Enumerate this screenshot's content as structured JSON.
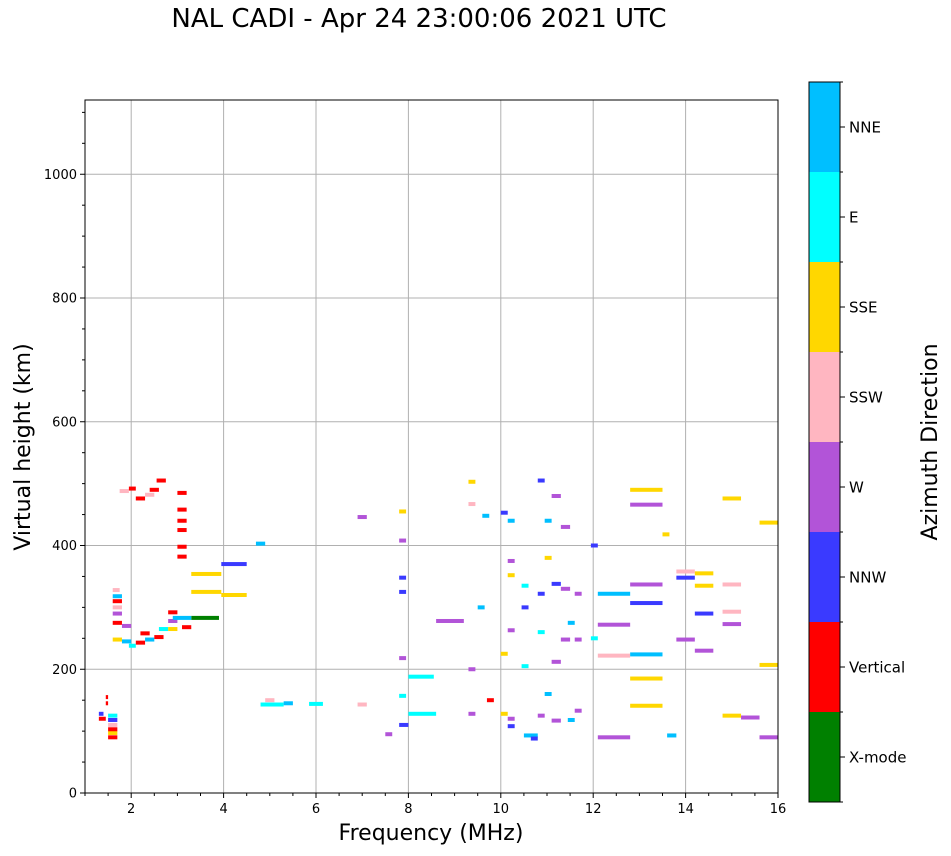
{
  "chart_data": {
    "type": "scatter",
    "title": "NAL CADI - Apr 24 23:00:06 2021 UTC",
    "xlabel": "Frequency (MHz)",
    "ylabel": "Virtual height (km)",
    "xlim": [
      1,
      16
    ],
    "ylim": [
      0,
      1120
    ],
    "x_ticks": [
      2,
      4,
      6,
      8,
      10,
      12,
      14,
      16
    ],
    "y_ticks": [
      0,
      200,
      400,
      600,
      800,
      1000
    ],
    "grid": true,
    "colorbar": {
      "label": "Azimuth Direction",
      "categories": [
        {
          "name": "X-mode",
          "color": "#008000"
        },
        {
          "name": "Vertical",
          "color": "#ff0000"
        },
        {
          "name": "NNW",
          "color": "#3a3aff"
        },
        {
          "name": "W",
          "color": "#b254d8"
        },
        {
          "name": "SSW",
          "color": "#ffb6c1"
        },
        {
          "name": "SSE",
          "color": "#ffd700"
        },
        {
          "name": "E",
          "color": "#00ffff"
        },
        {
          "name": "NNE",
          "color": "#00bfff"
        }
      ]
    },
    "echoes": [
      {
        "f0": 3.3,
        "f1": 3.9,
        "h": 283,
        "dir": "X-mode"
      },
      {
        "f0": 1.5,
        "f1": 1.7,
        "h": 90,
        "dir": "Vertical"
      },
      {
        "f0": 1.5,
        "f1": 1.7,
        "h": 97,
        "dir": "SSE"
      },
      {
        "f0": 1.5,
        "f1": 1.7,
        "h": 103,
        "dir": "Vertical"
      },
      {
        "f0": 1.5,
        "f1": 1.7,
        "h": 110,
        "dir": "SSW"
      },
      {
        "f0": 1.5,
        "f1": 1.7,
        "h": 118,
        "dir": "NNW"
      },
      {
        "f0": 1.5,
        "f1": 1.7,
        "h": 125,
        "dir": "E"
      },
      {
        "f0": 1.45,
        "f1": 1.5,
        "h": 145,
        "dir": "Vertical"
      },
      {
        "f0": 1.3,
        "f1": 1.45,
        "h": 120,
        "dir": "Vertical"
      },
      {
        "f0": 1.3,
        "f1": 1.4,
        "h": 128,
        "dir": "NNW"
      },
      {
        "f0": 1.45,
        "f1": 1.5,
        "h": 155,
        "dir": "Vertical"
      },
      {
        "f0": 1.6,
        "f1": 1.8,
        "h": 248,
        "dir": "SSE"
      },
      {
        "f0": 1.8,
        "f1": 2.0,
        "h": 245,
        "dir": "NNE"
      },
      {
        "f0": 1.95,
        "f1": 2.1,
        "h": 238,
        "dir": "E"
      },
      {
        "f0": 2.1,
        "f1": 2.3,
        "h": 243,
        "dir": "Vertical"
      },
      {
        "f0": 2.2,
        "f1": 2.4,
        "h": 258,
        "dir": "Vertical"
      },
      {
        "f0": 2.3,
        "f1": 2.5,
        "h": 248,
        "dir": "NNE"
      },
      {
        "f0": 2.5,
        "f1": 2.7,
        "h": 252,
        "dir": "Vertical"
      },
      {
        "f0": 2.6,
        "f1": 2.8,
        "h": 265,
        "dir": "E"
      },
      {
        "f0": 1.6,
        "f1": 1.8,
        "h": 275,
        "dir": "Vertical"
      },
      {
        "f0": 1.6,
        "f1": 1.8,
        "h": 290,
        "dir": "W"
      },
      {
        "f0": 1.6,
        "f1": 1.8,
        "h": 300,
        "dir": "SSW"
      },
      {
        "f0": 1.6,
        "f1": 1.8,
        "h": 310,
        "dir": "Vertical"
      },
      {
        "f0": 1.6,
        "f1": 1.8,
        "h": 318,
        "dir": "NNE"
      },
      {
        "f0": 1.6,
        "f1": 1.75,
        "h": 328,
        "dir": "SSW"
      },
      {
        "f0": 1.8,
        "f1": 2.0,
        "h": 270,
        "dir": "W"
      },
      {
        "f0": 2.8,
        "f1": 3.0,
        "h": 292,
        "dir": "Vertical"
      },
      {
        "f0": 2.8,
        "f1": 3.0,
        "h": 278,
        "dir": "W"
      },
      {
        "f0": 2.9,
        "f1": 3.3,
        "h": 283,
        "dir": "NNE"
      },
      {
        "f0": 2.8,
        "f1": 3.0,
        "h": 265,
        "dir": "SSE"
      },
      {
        "f0": 3.1,
        "f1": 3.3,
        "h": 268,
        "dir": "Vertical"
      },
      {
        "f0": 3.3,
        "f1": 3.95,
        "h": 325,
        "dir": "SSE"
      },
      {
        "f0": 3.3,
        "f1": 3.95,
        "h": 354,
        "dir": "SSE"
      },
      {
        "f0": 3.95,
        "f1": 4.5,
        "h": 320,
        "dir": "SSE"
      },
      {
        "f0": 3.95,
        "f1": 4.5,
        "h": 370,
        "dir": "NNW"
      },
      {
        "f0": 3.0,
        "f1": 3.2,
        "h": 382,
        "dir": "Vertical"
      },
      {
        "f0": 3.0,
        "f1": 3.2,
        "h": 398,
        "dir": "Vertical"
      },
      {
        "f0": 3.0,
        "f1": 3.2,
        "h": 425,
        "dir": "Vertical"
      },
      {
        "f0": 3.0,
        "f1": 3.2,
        "h": 440,
        "dir": "Vertical"
      },
      {
        "f0": 3.0,
        "f1": 3.2,
        "h": 458,
        "dir": "Vertical"
      },
      {
        "f0": 3.0,
        "f1": 3.2,
        "h": 485,
        "dir": "Vertical"
      },
      {
        "f0": 1.75,
        "f1": 1.95,
        "h": 488,
        "dir": "SSW"
      },
      {
        "f0": 1.95,
        "f1": 2.1,
        "h": 492,
        "dir": "Vertical"
      },
      {
        "f0": 2.1,
        "f1": 2.3,
        "h": 476,
        "dir": "Vertical"
      },
      {
        "f0": 2.3,
        "f1": 2.5,
        "h": 482,
        "dir": "SSW"
      },
      {
        "f0": 2.4,
        "f1": 2.6,
        "h": 490,
        "dir": "Vertical"
      },
      {
        "f0": 2.55,
        "f1": 2.75,
        "h": 505,
        "dir": "Vertical"
      },
      {
        "f0": 4.7,
        "f1": 4.9,
        "h": 403,
        "dir": "NNE"
      },
      {
        "f0": 4.8,
        "f1": 5.3,
        "h": 143,
        "dir": "E"
      },
      {
        "f0": 5.3,
        "f1": 5.5,
        "h": 145,
        "dir": "NNE"
      },
      {
        "f0": 4.9,
        "f1": 5.1,
        "h": 150,
        "dir": "SSW"
      },
      {
        "f0": 5.85,
        "f1": 6.15,
        "h": 144,
        "dir": "E"
      },
      {
        "f0": 6.9,
        "f1": 7.1,
        "h": 446,
        "dir": "W"
      },
      {
        "f0": 6.9,
        "f1": 7.1,
        "h": 143,
        "dir": "SSW"
      },
      {
        "f0": 7.5,
        "f1": 7.65,
        "h": 95,
        "dir": "W"
      },
      {
        "f0": 7.8,
        "f1": 8.0,
        "h": 110,
        "dir": "NNW"
      },
      {
        "f0": 8.0,
        "f1": 8.6,
        "h": 128,
        "dir": "E"
      },
      {
        "f0": 8.0,
        "f1": 8.55,
        "h": 188,
        "dir": "E"
      },
      {
        "f0": 8.6,
        "f1": 9.2,
        "h": 278,
        "dir": "W"
      },
      {
        "f0": 7.8,
        "f1": 7.95,
        "h": 348,
        "dir": "NNW"
      },
      {
        "f0": 7.8,
        "f1": 7.95,
        "h": 408,
        "dir": "W"
      },
      {
        "f0": 7.8,
        "f1": 7.95,
        "h": 455,
        "dir": "SSE"
      },
      {
        "f0": 7.8,
        "f1": 7.95,
        "h": 218,
        "dir": "W"
      },
      {
        "f0": 7.8,
        "f1": 7.95,
        "h": 325,
        "dir": "NNW"
      },
      {
        "f0": 7.8,
        "f1": 7.95,
        "h": 157,
        "dir": "E"
      },
      {
        "f0": 9.3,
        "f1": 9.45,
        "h": 128,
        "dir": "W"
      },
      {
        "f0": 9.3,
        "f1": 9.45,
        "h": 200,
        "dir": "W"
      },
      {
        "f0": 9.3,
        "f1": 9.45,
        "h": 467,
        "dir": "SSW"
      },
      {
        "f0": 9.3,
        "f1": 9.45,
        "h": 503,
        "dir": "SSE"
      },
      {
        "f0": 9.5,
        "f1": 9.65,
        "h": 300,
        "dir": "NNE"
      },
      {
        "f0": 9.6,
        "f1": 9.75,
        "h": 448,
        "dir": "NNE"
      },
      {
        "f0": 9.7,
        "f1": 9.85,
        "h": 150,
        "dir": "Vertical"
      },
      {
        "f0": 10.0,
        "f1": 10.15,
        "h": 453,
        "dir": "NNW"
      },
      {
        "f0": 10.0,
        "f1": 10.15,
        "h": 225,
        "dir": "SSE"
      },
      {
        "f0": 10.0,
        "f1": 10.15,
        "h": 128,
        "dir": "SSE"
      },
      {
        "f0": 10.15,
        "f1": 10.3,
        "h": 120,
        "dir": "W"
      },
      {
        "f0": 10.15,
        "f1": 10.3,
        "h": 108,
        "dir": "NNW"
      },
      {
        "f0": 10.15,
        "f1": 10.3,
        "h": 440,
        "dir": "NNE"
      },
      {
        "f0": 10.15,
        "f1": 10.3,
        "h": 375,
        "dir": "W"
      },
      {
        "f0": 10.15,
        "f1": 10.3,
        "h": 352,
        "dir": "SSE"
      },
      {
        "f0": 10.15,
        "f1": 10.3,
        "h": 263,
        "dir": "W"
      },
      {
        "f0": 10.45,
        "f1": 10.6,
        "h": 300,
        "dir": "NNW"
      },
      {
        "f0": 10.45,
        "f1": 10.6,
        "h": 335,
        "dir": "E"
      },
      {
        "f0": 10.45,
        "f1": 10.6,
        "h": 205,
        "dir": "E"
      },
      {
        "f0": 10.5,
        "f1": 10.8,
        "h": 93,
        "dir": "NNE"
      },
      {
        "f0": 10.65,
        "f1": 10.8,
        "h": 88,
        "dir": "NNW"
      },
      {
        "f0": 10.8,
        "f1": 10.95,
        "h": 505,
        "dir": "NNW"
      },
      {
        "f0": 10.8,
        "f1": 10.95,
        "h": 260,
        "dir": "E"
      },
      {
        "f0": 10.8,
        "f1": 10.95,
        "h": 322,
        "dir": "NNW"
      },
      {
        "f0": 10.8,
        "f1": 10.95,
        "h": 125,
        "dir": "W"
      },
      {
        "f0": 10.95,
        "f1": 11.1,
        "h": 440,
        "dir": "NNE"
      },
      {
        "f0": 10.95,
        "f1": 11.1,
        "h": 380,
        "dir": "SSE"
      },
      {
        "f0": 10.95,
        "f1": 11.1,
        "h": 160,
        "dir": "NNE"
      },
      {
        "f0": 11.1,
        "f1": 11.3,
        "h": 480,
        "dir": "W"
      },
      {
        "f0": 11.1,
        "f1": 11.3,
        "h": 338,
        "dir": "NNW"
      },
      {
        "f0": 11.1,
        "f1": 11.3,
        "h": 212,
        "dir": "W"
      },
      {
        "f0": 11.1,
        "f1": 11.3,
        "h": 117,
        "dir": "W"
      },
      {
        "f0": 11.3,
        "f1": 11.5,
        "h": 430,
        "dir": "W"
      },
      {
        "f0": 11.3,
        "f1": 11.5,
        "h": 330,
        "dir": "W"
      },
      {
        "f0": 11.3,
        "f1": 11.5,
        "h": 248,
        "dir": "W"
      },
      {
        "f0": 11.45,
        "f1": 11.6,
        "h": 275,
        "dir": "NNE"
      },
      {
        "f0": 11.45,
        "f1": 11.6,
        "h": 118,
        "dir": "NNE"
      },
      {
        "f0": 11.6,
        "f1": 11.75,
        "h": 322,
        "dir": "W"
      },
      {
        "f0": 11.6,
        "f1": 11.75,
        "h": 248,
        "dir": "W"
      },
      {
        "f0": 11.6,
        "f1": 11.75,
        "h": 133,
        "dir": "W"
      },
      {
        "f0": 11.95,
        "f1": 12.1,
        "h": 400,
        "dir": "NNW"
      },
      {
        "f0": 11.95,
        "f1": 12.1,
        "h": 250,
        "dir": "E"
      },
      {
        "f0": 12.1,
        "f1": 12.8,
        "h": 322,
        "dir": "NNE"
      },
      {
        "f0": 12.1,
        "f1": 12.8,
        "h": 272,
        "dir": "W"
      },
      {
        "f0": 12.1,
        "f1": 12.8,
        "h": 222,
        "dir": "SSW"
      },
      {
        "f0": 12.1,
        "f1": 12.8,
        "h": 90,
        "dir": "W"
      },
      {
        "f0": 12.8,
        "f1": 13.5,
        "h": 490,
        "dir": "SSE"
      },
      {
        "f0": 12.8,
        "f1": 13.5,
        "h": 466,
        "dir": "W"
      },
      {
        "f0": 12.8,
        "f1": 13.5,
        "h": 337,
        "dir": "W"
      },
      {
        "f0": 12.8,
        "f1": 13.5,
        "h": 307,
        "dir": "NNW"
      },
      {
        "f0": 12.8,
        "f1": 13.5,
        "h": 224,
        "dir": "NNE"
      },
      {
        "f0": 12.8,
        "f1": 13.5,
        "h": 185,
        "dir": "SSE"
      },
      {
        "f0": 12.8,
        "f1": 13.5,
        "h": 141,
        "dir": "SSE"
      },
      {
        "f0": 13.5,
        "f1": 13.65,
        "h": 418,
        "dir": "SSE"
      },
      {
        "f0": 13.6,
        "f1": 13.8,
        "h": 93,
        "dir": "NNE"
      },
      {
        "f0": 13.8,
        "f1": 14.2,
        "h": 358,
        "dir": "SSW"
      },
      {
        "f0": 13.8,
        "f1": 14.2,
        "h": 348,
        "dir": "NNW"
      },
      {
        "f0": 13.8,
        "f1": 14.2,
        "h": 248,
        "dir": "W"
      },
      {
        "f0": 14.2,
        "f1": 14.6,
        "h": 355,
        "dir": "SSE"
      },
      {
        "f0": 14.2,
        "f1": 14.6,
        "h": 335,
        "dir": "SSE"
      },
      {
        "f0": 14.2,
        "f1": 14.6,
        "h": 290,
        "dir": "NNW"
      },
      {
        "f0": 14.2,
        "f1": 14.6,
        "h": 230,
        "dir": "W"
      },
      {
        "f0": 14.8,
        "f1": 15.2,
        "h": 476,
        "dir": "SSE"
      },
      {
        "f0": 14.8,
        "f1": 15.2,
        "h": 337,
        "dir": "SSW"
      },
      {
        "f0": 14.8,
        "f1": 15.2,
        "h": 293,
        "dir": "SSW"
      },
      {
        "f0": 14.8,
        "f1": 15.2,
        "h": 273,
        "dir": "W"
      },
      {
        "f0": 14.8,
        "f1": 15.2,
        "h": 125,
        "dir": "SSE"
      },
      {
        "f0": 15.2,
        "f1": 15.6,
        "h": 122,
        "dir": "W"
      },
      {
        "f0": 15.6,
        "f1": 16.0,
        "h": 437,
        "dir": "SSE"
      },
      {
        "f0": 15.6,
        "f1": 16.0,
        "h": 207,
        "dir": "SSE"
      },
      {
        "f0": 15.6,
        "f1": 16.0,
        "h": 90,
        "dir": "W"
      }
    ]
  }
}
